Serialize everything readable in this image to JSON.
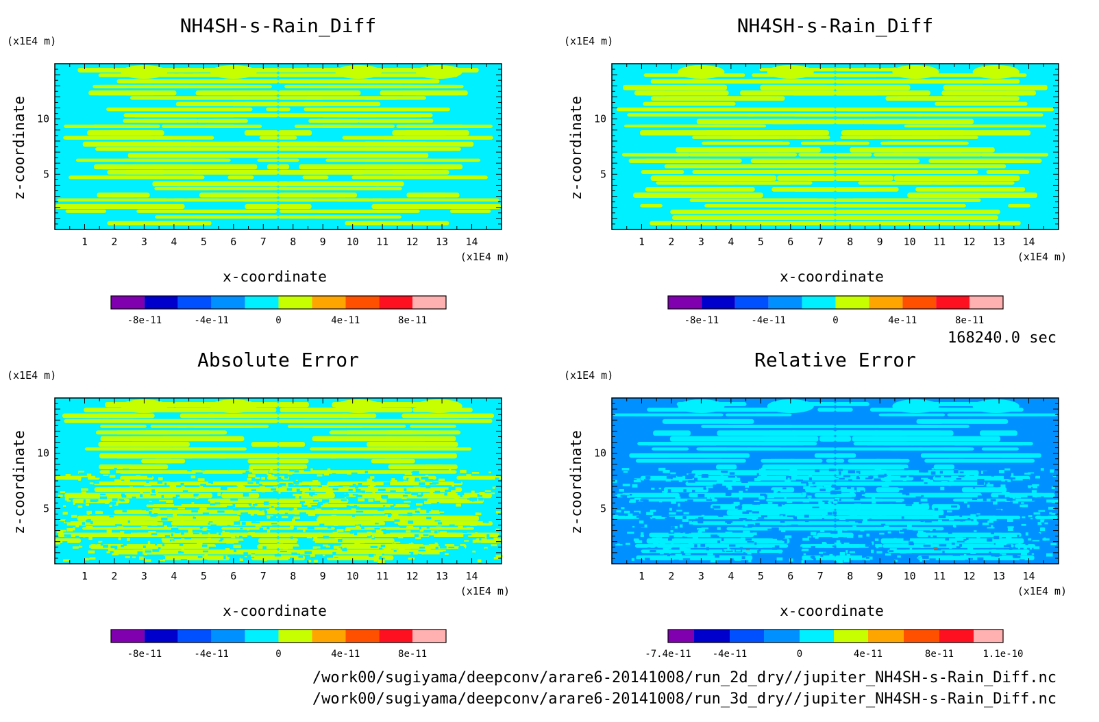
{
  "footer": {
    "time": "168240.0 sec",
    "files": [
      "/work00/sugiyama/deepconv/arare6-20141008/run_2d_dry//jupiter_NH4SH-s-Rain_Diff.nc",
      "/work00/sugiyama/deepconv/arare6-20141008/run_3d_dry//jupiter_NH4SH-s-Rain_Diff.nc"
    ]
  },
  "chart_data": [
    {
      "type": "heatmap",
      "title": "NH4SH-s-Rain_Diff",
      "xlabel": "x-coordinate",
      "ylabel": "z-coordinate",
      "x_unit": "(x1E4 m)",
      "y_unit": "(x1E4 m)",
      "xlim": [
        0,
        15
      ],
      "ylim": [
        0,
        15
      ],
      "x_ticks": [
        1,
        2,
        3,
        4,
        5,
        6,
        7,
        8,
        9,
        10,
        11,
        12,
        13,
        14
      ],
      "y_ticks": [
        5,
        10
      ],
      "colorbar": {
        "colors": [
          "#8000b0",
          "#0000cc",
          "#0050ff",
          "#0090ff",
          "#00f0ff",
          "#c8ff00",
          "#ffa500",
          "#ff5000",
          "#ff1020",
          "#ffb0b0"
        ],
        "tick_labels": [
          "-8e-11",
          "-4e-11",
          "0",
          "4e-11",
          "8e-11"
        ]
      },
      "dominant_levels": [
        "#00f0ff",
        "#c8ff00"
      ]
    },
    {
      "type": "heatmap",
      "title": "NH4SH-s-Rain_Diff",
      "xlabel": "x-coordinate",
      "ylabel": "z-coordinate",
      "x_unit": "(x1E4 m)",
      "y_unit": "(x1E4 m)",
      "xlim": [
        0,
        15
      ],
      "ylim": [
        0,
        15
      ],
      "x_ticks": [
        1,
        2,
        3,
        4,
        5,
        6,
        7,
        8,
        9,
        10,
        11,
        12,
        13,
        14
      ],
      "y_ticks": [
        5,
        10
      ],
      "colorbar": {
        "colors": [
          "#8000b0",
          "#0000cc",
          "#0050ff",
          "#0090ff",
          "#00f0ff",
          "#c8ff00",
          "#ffa500",
          "#ff5000",
          "#ff1020",
          "#ffb0b0"
        ],
        "tick_labels": [
          "-8e-11",
          "-4e-11",
          "0",
          "4e-11",
          "8e-11"
        ]
      },
      "dominant_levels": [
        "#00f0ff",
        "#c8ff00"
      ]
    },
    {
      "type": "heatmap",
      "title": "Absolute Error",
      "xlabel": "x-coordinate",
      "ylabel": "z-coordinate",
      "x_unit": "(x1E4 m)",
      "y_unit": "(x1E4 m)",
      "xlim": [
        0,
        15
      ],
      "ylim": [
        0,
        15
      ],
      "x_ticks": [
        1,
        2,
        3,
        4,
        5,
        6,
        7,
        8,
        9,
        10,
        11,
        12,
        13,
        14
      ],
      "y_ticks": [
        5,
        10
      ],
      "colorbar": {
        "colors": [
          "#8000b0",
          "#0000cc",
          "#0050ff",
          "#0090ff",
          "#00f0ff",
          "#c8ff00",
          "#ffa500",
          "#ff5000",
          "#ff1020",
          "#ffb0b0"
        ],
        "tick_labels": [
          "-8e-11",
          "-4e-11",
          "0",
          "4e-11",
          "8e-11"
        ]
      },
      "dominant_levels": [
        "#00f0ff",
        "#c8ff00"
      ]
    },
    {
      "type": "heatmap",
      "title": "Relative Error",
      "xlabel": "x-coordinate",
      "ylabel": "z-coordinate",
      "x_unit": "(x1E4 m)",
      "y_unit": "(x1E4 m)",
      "xlim": [
        0,
        15
      ],
      "ylim": [
        0,
        15
      ],
      "x_ticks": [
        1,
        2,
        3,
        4,
        5,
        6,
        7,
        8,
        9,
        10,
        11,
        12,
        13,
        14
      ],
      "y_ticks": [
        5,
        10
      ],
      "colorbar": {
        "colors": [
          "#8000b0",
          "#0000cc",
          "#0050ff",
          "#0090ff",
          "#00f0ff",
          "#c8ff00",
          "#ffa500",
          "#ff5000",
          "#ff1020",
          "#ffb0b0"
        ],
        "tick_labels": [
          "-7.4e-11",
          "-4e-11",
          "0",
          "4e-11",
          "8e-11",
          "1.1e-10"
        ]
      },
      "dominant_levels": [
        "#0090ff",
        "#00f0ff"
      ]
    }
  ]
}
